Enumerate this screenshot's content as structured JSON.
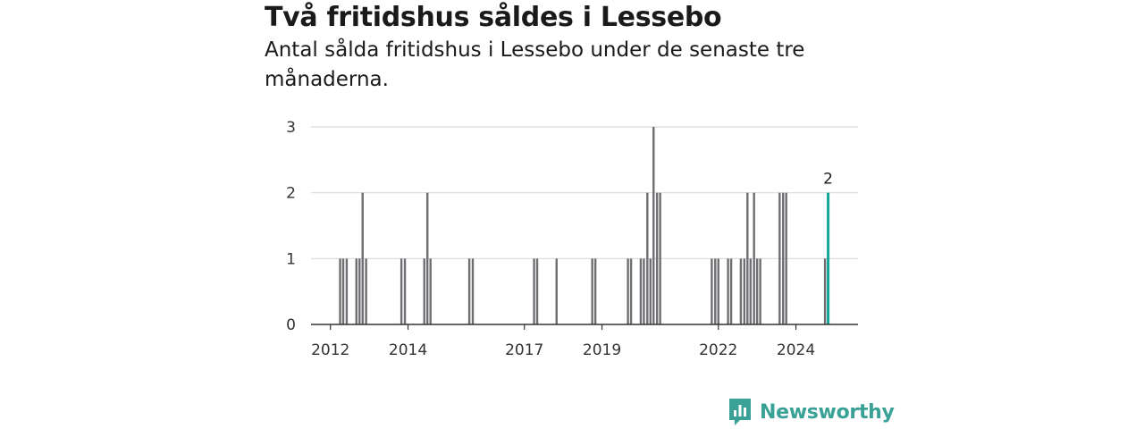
{
  "title": "Två fritidshus såldes i Lessebo",
  "subtitle": "Antal sålda fritidshus i Lessebo under de senaste tre månaderna.",
  "brand": {
    "name": "Newsworthy",
    "icon": "newsworthy-logo-icon"
  },
  "colors": {
    "bar": "#6e6e73",
    "highlight": "#14a596",
    "grid": "#d9d9d9",
    "axis": "#333333",
    "brand": "#3aa196"
  },
  "chart_data": {
    "type": "bar",
    "title": "",
    "xlabel": "",
    "ylabel": "",
    "ylim": [
      0,
      3
    ],
    "yticks": [
      0,
      1,
      2,
      3
    ],
    "xticks": [
      "2012",
      "2014",
      "2017",
      "2019",
      "2022",
      "2024"
    ],
    "xtick_years": [
      2012,
      2014,
      2017,
      2019,
      2022,
      2024
    ],
    "grid": true,
    "legend": "none",
    "series": [
      {
        "values": [
          [
            2012.25,
            1
          ],
          [
            2012.33,
            1
          ],
          [
            2012.42,
            1
          ],
          [
            2012.67,
            1
          ],
          [
            2012.75,
            1
          ],
          [
            2012.83,
            2
          ],
          [
            2012.92,
            1
          ],
          [
            2013.83,
            1
          ],
          [
            2013.92,
            1
          ],
          [
            2014.42,
            1
          ],
          [
            2014.5,
            2
          ],
          [
            2014.58,
            1
          ],
          [
            2015.58,
            1
          ],
          [
            2015.67,
            1
          ],
          [
            2017.25,
            1
          ],
          [
            2017.33,
            1
          ],
          [
            2017.83,
            1
          ],
          [
            2018.75,
            1
          ],
          [
            2018.83,
            1
          ],
          [
            2019.67,
            1
          ],
          [
            2019.75,
            1
          ],
          [
            2020.0,
            1
          ],
          [
            2020.08,
            1
          ],
          [
            2020.17,
            2
          ],
          [
            2020.25,
            1
          ],
          [
            2020.33,
            3
          ],
          [
            2020.42,
            2
          ],
          [
            2020.5,
            2
          ],
          [
            2021.83,
            1
          ],
          [
            2021.92,
            1
          ],
          [
            2022.0,
            1
          ],
          [
            2022.25,
            1
          ],
          [
            2022.33,
            1
          ],
          [
            2022.58,
            1
          ],
          [
            2022.67,
            1
          ],
          [
            2022.75,
            2
          ],
          [
            2022.83,
            1
          ],
          [
            2022.92,
            2
          ],
          [
            2023.0,
            1
          ],
          [
            2023.08,
            1
          ],
          [
            2023.58,
            2
          ],
          [
            2023.67,
            2
          ],
          [
            2023.75,
            2
          ],
          [
            2024.75,
            1
          ]
        ]
      }
    ],
    "highlight": {
      "x": 2024.83,
      "value": 2,
      "label": "2"
    }
  }
}
